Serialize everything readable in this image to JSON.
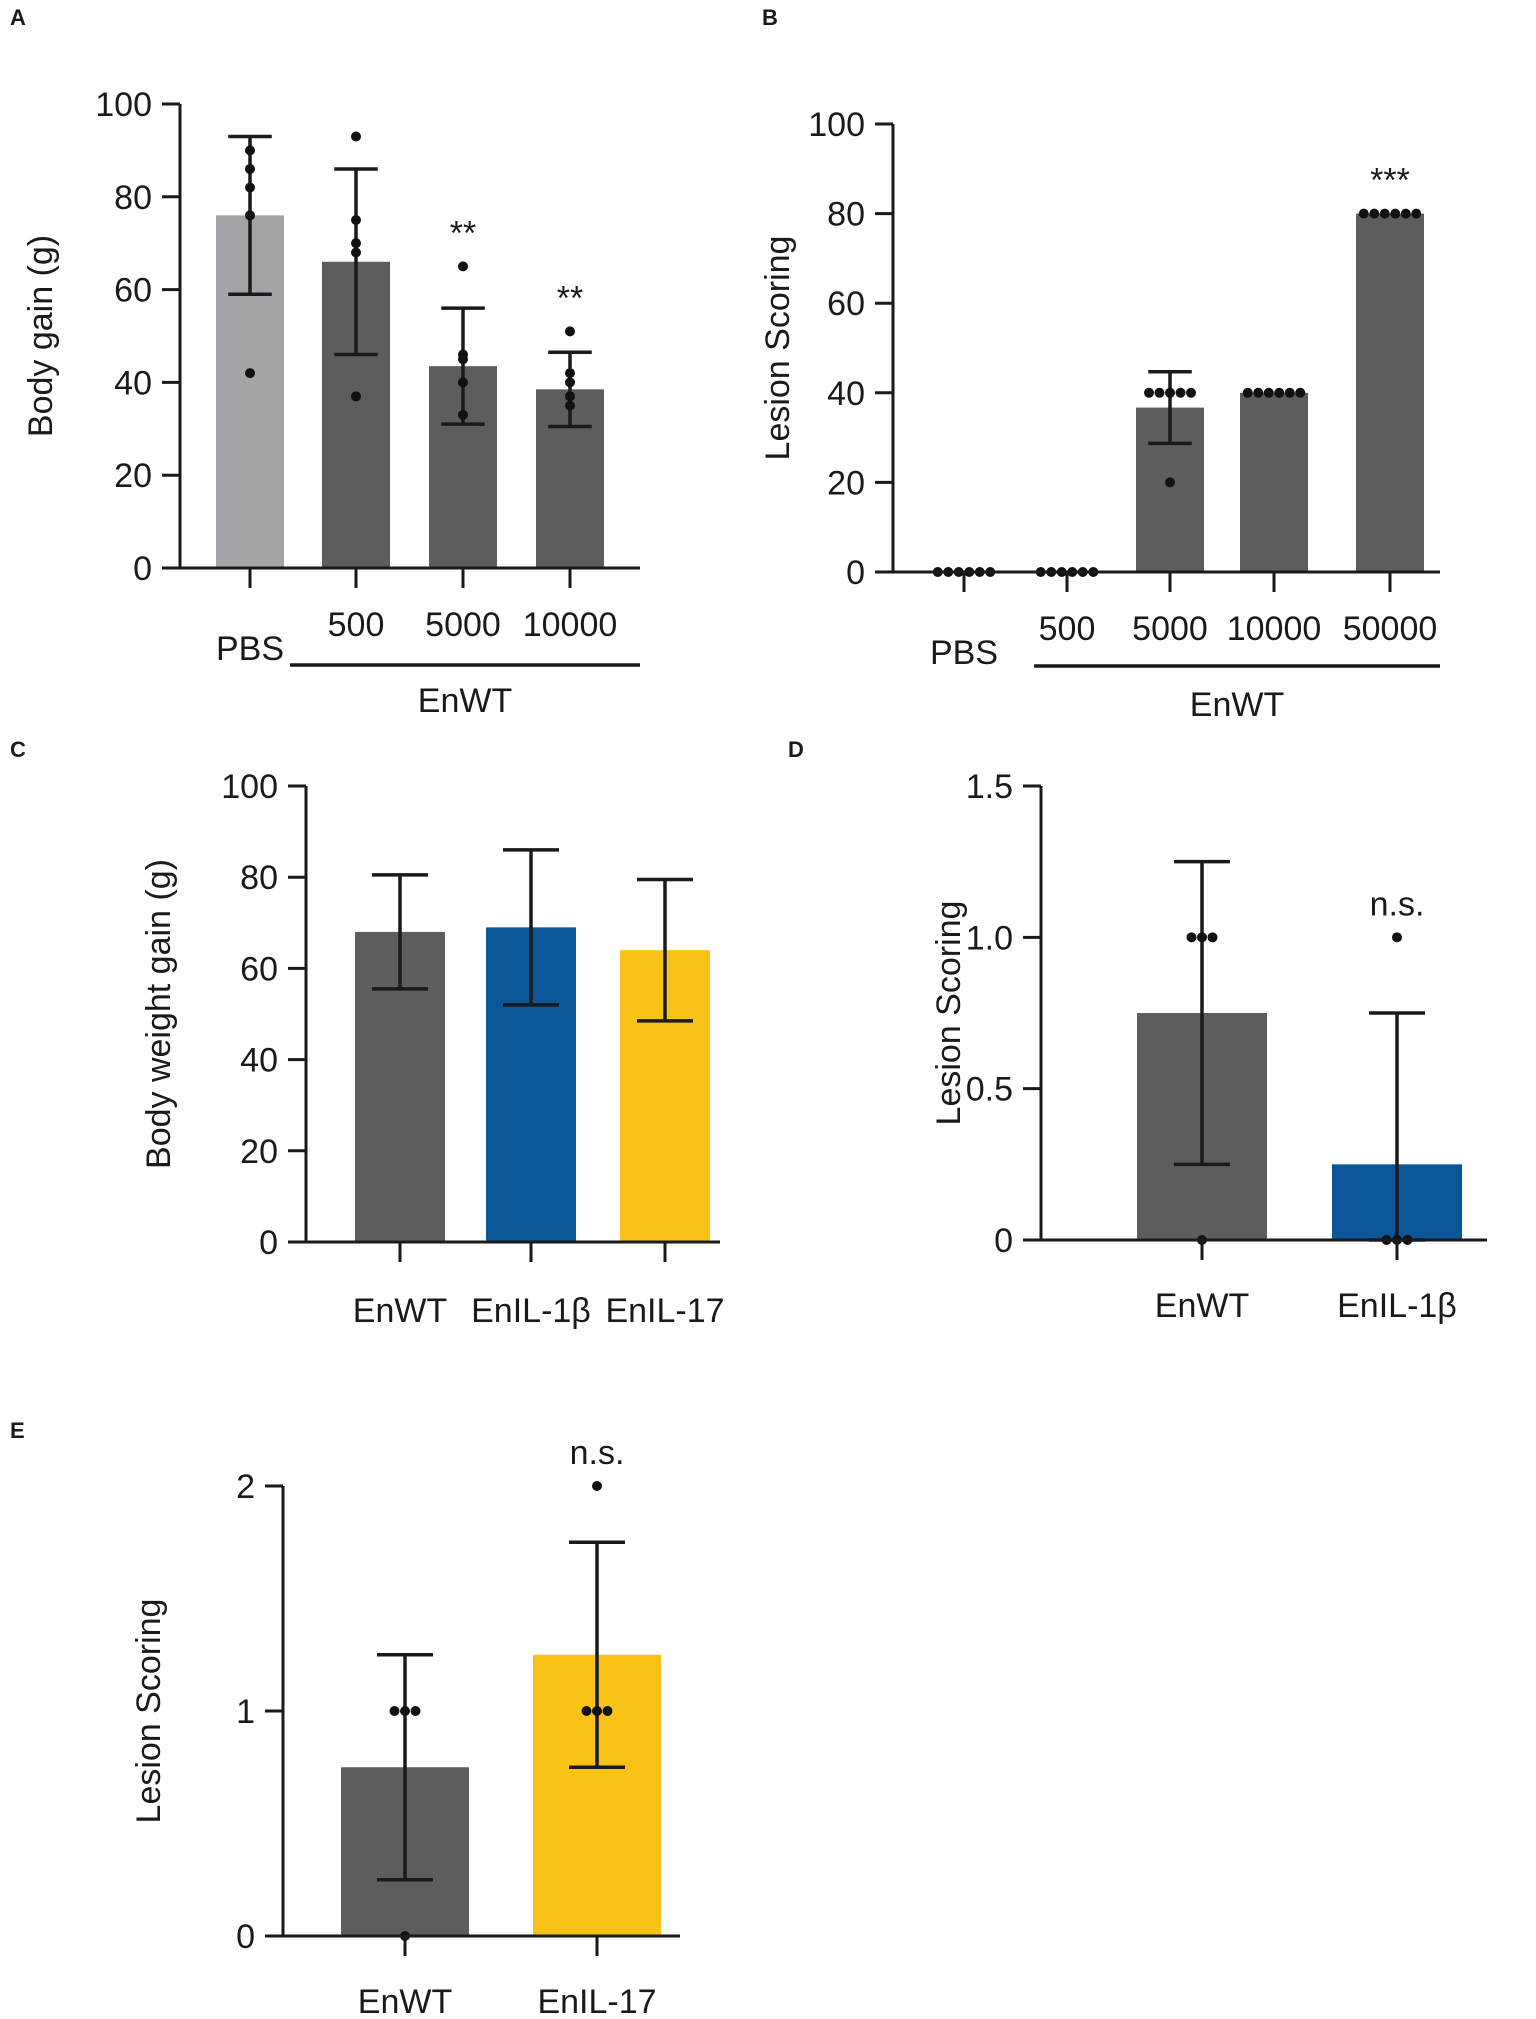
{
  "chart_data": [
    {
      "panel": "A",
      "type": "bar",
      "ylabel": "Body gain (g)",
      "ylim": [
        0,
        100
      ],
      "yticks": [
        0,
        20,
        40,
        60,
        80,
        100
      ],
      "categories": [
        "PBS",
        "500",
        "5000",
        "10000"
      ],
      "group_label": "EnWT",
      "group_from": 1,
      "values": [
        76,
        66,
        43.5,
        38.5
      ],
      "error": [
        17,
        20,
        12.5,
        8
      ],
      "colors": [
        "#a3a4a7",
        "#5c5d5f",
        "#5c5d5f",
        "#5c5d5f"
      ],
      "points": [
        [
          90,
          86,
          82,
          76,
          42
        ],
        [
          93,
          75,
          70,
          68,
          37
        ],
        [
          65,
          46,
          45,
          40,
          33
        ],
        [
          51,
          42,
          40,
          37,
          35
        ]
      ],
      "significance": [
        "",
        "",
        "**",
        "**"
      ]
    },
    {
      "panel": "B",
      "type": "bar",
      "ylabel": "Lesion Scoring",
      "ylim": [
        0,
        100
      ],
      "yticks": [
        0,
        20,
        40,
        60,
        80,
        100
      ],
      "categories": [
        "PBS",
        "500",
        "5000",
        "10000",
        "50000"
      ],
      "group_label": "EnWT",
      "group_from": 1,
      "values": [
        0,
        0,
        36.7,
        40,
        80
      ],
      "error": [
        0,
        0,
        8,
        0,
        0
      ],
      "colors": [
        "#5c5d5f",
        "#5c5d5f",
        "#5c5d5f",
        "#5c5d5f",
        "#5c5d5f"
      ],
      "points": [
        [
          0,
          0,
          0,
          0,
          0,
          0
        ],
        [
          0,
          0,
          0,
          0,
          0,
          0
        ],
        [
          40,
          40,
          40,
          40,
          40,
          20
        ],
        [
          40,
          40,
          40,
          40,
          40,
          40
        ],
        [
          80,
          80,
          80,
          80,
          80,
          80
        ]
      ],
      "significance": [
        "",
        "",
        "",
        "",
        "***"
      ]
    },
    {
      "panel": "C",
      "type": "bar",
      "ylabel": "Body weight gain (g)",
      "ylim": [
        0,
        100
      ],
      "yticks": [
        0,
        20,
        40,
        60,
        80,
        100
      ],
      "categories": [
        "EnWT",
        "EnIL-1β",
        "EnIL-17"
      ],
      "values": [
        68,
        69,
        64
      ],
      "error": [
        12.5,
        17,
        15.5
      ],
      "colors": [
        "#5c5d5f",
        "#0b5697",
        "#f8c316"
      ],
      "points": [],
      "significance": [
        "",
        "",
        ""
      ]
    },
    {
      "panel": "D",
      "type": "bar",
      "ylabel": "Lesion Scoring",
      "ylim": [
        0,
        1.5
      ],
      "yticks": [
        0,
        0.5,
        1.0,
        1.5
      ],
      "ytick_labels": [
        "0",
        "0.5",
        "1.0",
        "1.5"
      ],
      "categories": [
        "EnWT",
        "EnIL-1β"
      ],
      "values": [
        0.75,
        0.25
      ],
      "error": [
        0.5,
        0.5
      ],
      "colors": [
        "#5c5d5f",
        "#0b5697"
      ],
      "points": [
        [
          1,
          1,
          1,
          0
        ],
        [
          1,
          0,
          0,
          0
        ]
      ],
      "significance": [
        "",
        "n.s."
      ]
    },
    {
      "panel": "E",
      "type": "bar",
      "ylabel": "Lesion Scoring",
      "ylim": [
        0,
        2
      ],
      "yticks": [
        0,
        1,
        2
      ],
      "categories": [
        "EnWT",
        "EnIL-17"
      ],
      "values": [
        0.75,
        1.25
      ],
      "error": [
        0.5,
        0.5
      ],
      "colors": [
        "#5c5d5f",
        "#f8c316"
      ],
      "points": [
        [
          1,
          1,
          1,
          0
        ],
        [
          2,
          1,
          1,
          1
        ]
      ],
      "significance": [
        "",
        "n.s."
      ]
    }
  ]
}
